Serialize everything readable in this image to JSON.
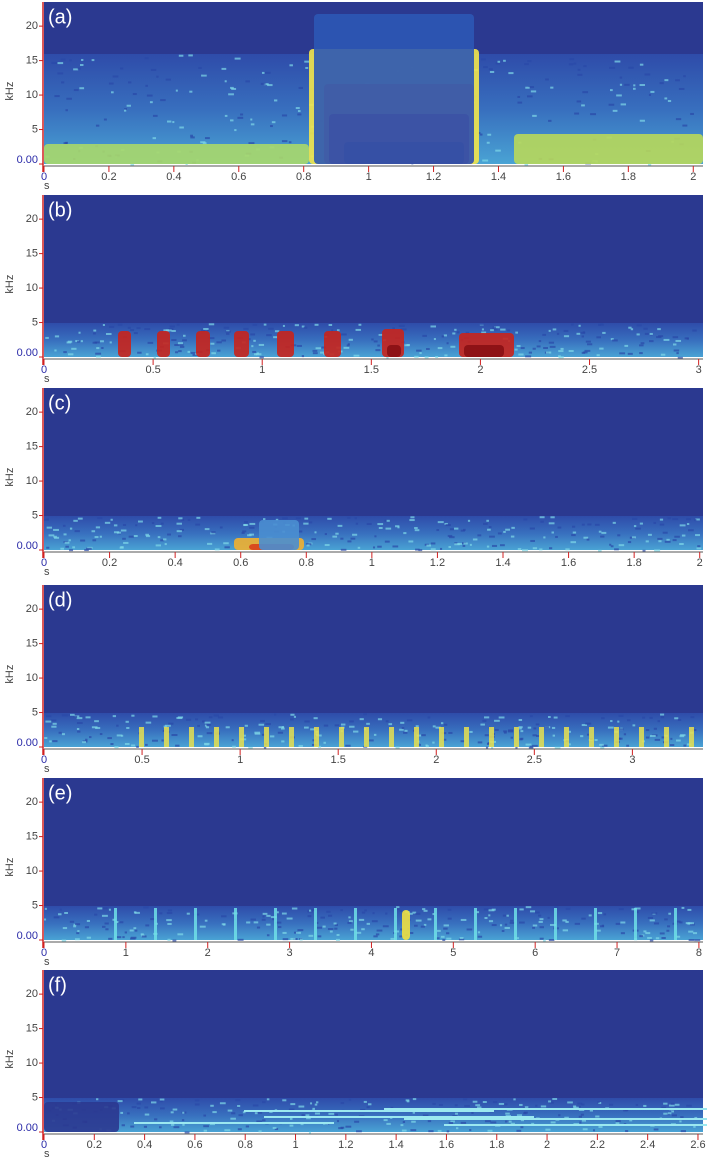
{
  "chart_data": [
    {
      "type": "spectrogram",
      "label": "(a)",
      "x_label": "s",
      "y_label": "kHz",
      "xlim": [
        0,
        2.03
      ],
      "xticks": [
        0,
        0.2,
        0.4,
        0.6,
        0.8,
        1,
        1.2,
        1.4,
        1.6,
        1.8,
        2
      ],
      "ylim": [
        0,
        23.5
      ],
      "yticks": [
        {
          "value": 0,
          "label": "0.00"
        },
        5,
        10,
        15,
        20
      ]
    },
    {
      "type": "spectrogram",
      "label": "(b)",
      "x_label": "s",
      "y_label": "kHz",
      "xlim": [
        0,
        3.02
      ],
      "xticks": [
        0,
        0.5,
        1,
        1.5,
        2,
        2.5,
        3
      ],
      "ylim": [
        0,
        23.5
      ],
      "yticks": [
        {
          "value": 0,
          "label": "0.00"
        },
        5,
        10,
        15,
        20
      ]
    },
    {
      "type": "spectrogram",
      "label": "(c)",
      "x_label": "s",
      "y_label": "kHz",
      "xlim": [
        0,
        2.01
      ],
      "xticks": [
        0,
        0.2,
        0.4,
        0.6,
        0.8,
        1,
        1.2,
        1.4,
        1.6,
        1.8,
        2
      ],
      "ylim": [
        0,
        23.5
      ],
      "yticks": [
        {
          "value": 0,
          "label": "0.00"
        },
        5,
        10,
        15,
        20
      ]
    },
    {
      "type": "spectrogram",
      "label": "(d)",
      "x_label": "s",
      "y_label": "kHz",
      "xlim": [
        0,
        3.36
      ],
      "xticks": [
        0,
        0.5,
        1,
        1.5,
        2,
        2.5,
        3
      ],
      "ylim": [
        0,
        23.5
      ],
      "yticks": [
        {
          "value": 0,
          "label": "0.00"
        },
        5,
        10,
        15,
        20
      ]
    },
    {
      "type": "spectrogram",
      "label": "(e)",
      "x_label": "s",
      "y_label": "kHz",
      "xlim": [
        0,
        8.05
      ],
      "xticks": [
        0,
        1,
        2,
        3,
        4,
        5,
        6,
        7,
        8
      ],
      "ylim": [
        0,
        23.5
      ],
      "yticks": [
        {
          "value": 0,
          "label": "0.00"
        },
        5,
        10,
        15,
        20
      ]
    },
    {
      "type": "spectrogram",
      "label": "(f)",
      "x_label": "s",
      "y_label": "kHz",
      "xlim": [
        0,
        2.62
      ],
      "xticks": [
        0,
        0.2,
        0.4,
        0.6,
        0.8,
        1,
        1.2,
        1.4,
        1.6,
        1.8,
        2,
        2.2,
        2.4,
        2.6
      ],
      "ylim": [
        0,
        23.5
      ],
      "yticks": [
        {
          "value": 0,
          "label": "0.00"
        },
        5,
        10,
        15,
        20
      ]
    }
  ]
}
